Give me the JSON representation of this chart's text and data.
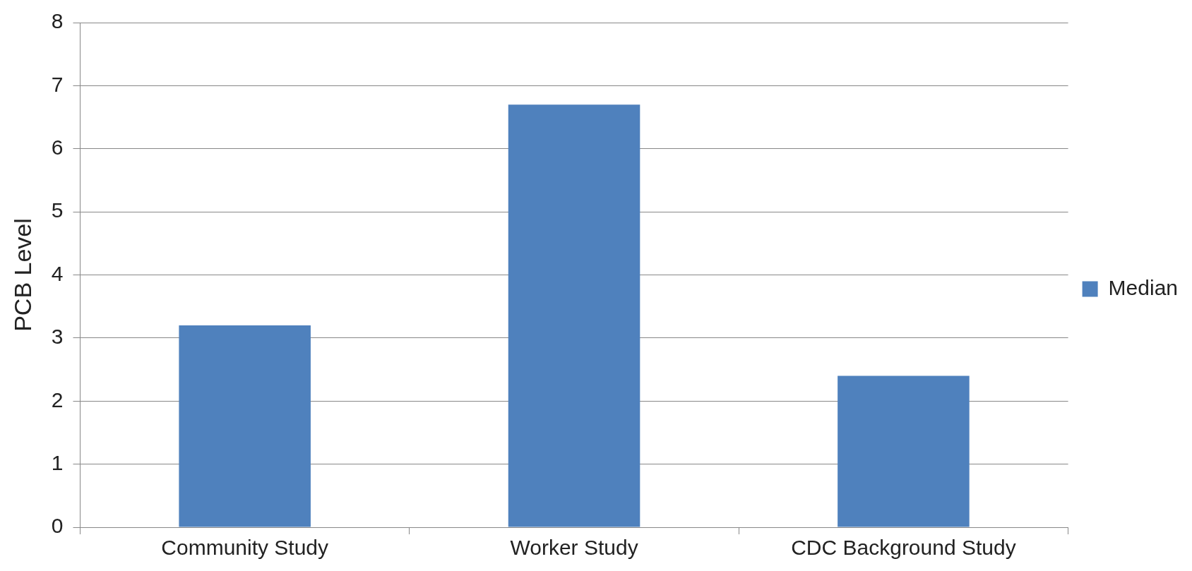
{
  "chart_data": {
    "type": "bar",
    "ylabel": "PCB Level",
    "categories": [
      "Community Study",
      "Worker Study",
      "CDC Background Study"
    ],
    "series": [
      {
        "name": "Median",
        "color": "#4f81bd",
        "values": [
          3.2,
          6.7,
          2.4
        ]
      }
    ],
    "ylim": [
      0,
      8
    ],
    "yticks": [
      0,
      1,
      2,
      3,
      4,
      5,
      6,
      7,
      8
    ],
    "grid": "y",
    "legend": "right"
  }
}
